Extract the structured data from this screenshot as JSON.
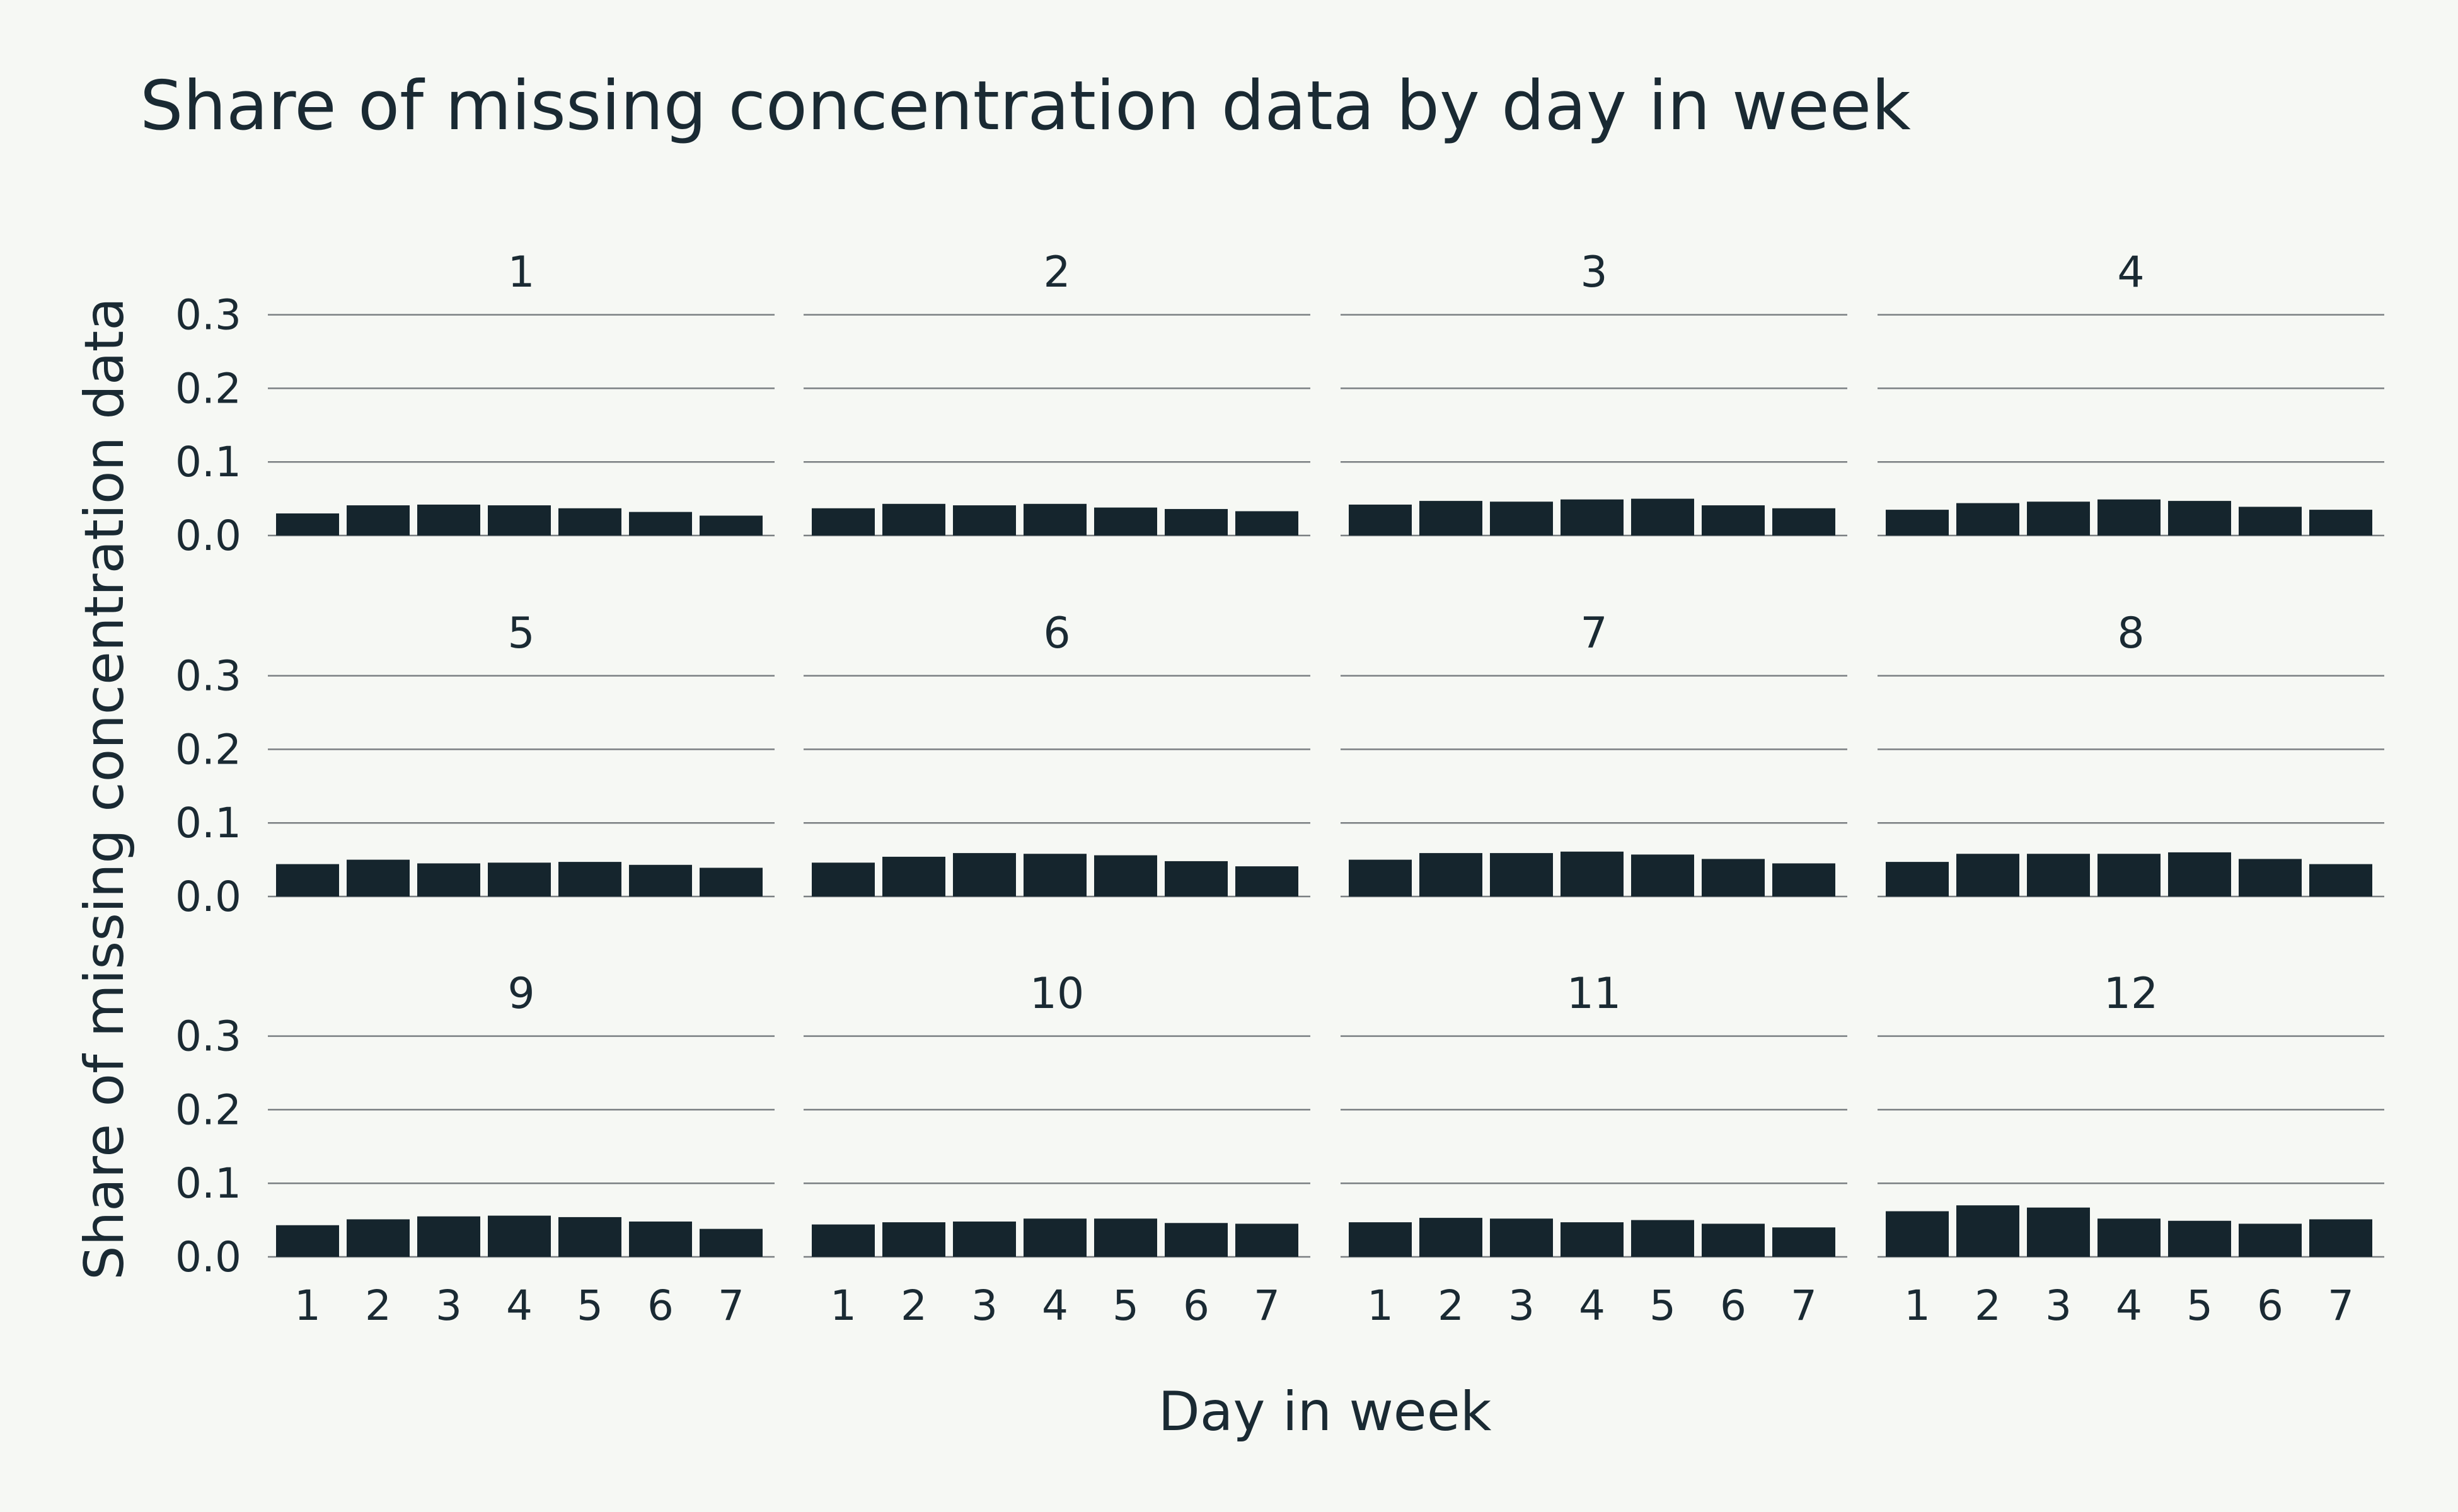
{
  "chart_data": {
    "type": "bar",
    "title": "Share of missing concentration data by day in week",
    "xlabel": "Day in week",
    "ylabel": "Share of missing concentration data",
    "categories": [
      "1",
      "2",
      "3",
      "4",
      "5",
      "6",
      "7"
    ],
    "yticks": [
      "0.0",
      "0.1",
      "0.2",
      "0.3"
    ],
    "ylim": [
      0,
      0.3
    ],
    "grid": true,
    "facet_layout": {
      "columns": 4,
      "rows": 3
    },
    "bar_color": "#15252d",
    "facets": [
      {
        "label": "1",
        "values": [
          0.03,
          0.041,
          0.042,
          0.041,
          0.037,
          0.032,
          0.027
        ]
      },
      {
        "label": "2",
        "values": [
          0.037,
          0.043,
          0.041,
          0.043,
          0.038,
          0.036,
          0.033
        ]
      },
      {
        "label": "3",
        "values": [
          0.042,
          0.047,
          0.046,
          0.049,
          0.05,
          0.041,
          0.037
        ]
      },
      {
        "label": "4",
        "values": [
          0.035,
          0.044,
          0.046,
          0.049,
          0.047,
          0.039,
          0.035
        ]
      },
      {
        "label": "5",
        "values": [
          0.044,
          0.05,
          0.045,
          0.046,
          0.047,
          0.043,
          0.039
        ]
      },
      {
        "label": "6",
        "values": [
          0.046,
          0.054,
          0.059,
          0.058,
          0.056,
          0.048,
          0.041
        ]
      },
      {
        "label": "7",
        "values": [
          0.05,
          0.059,
          0.059,
          0.061,
          0.057,
          0.051,
          0.045
        ]
      },
      {
        "label": "8",
        "values": [
          0.047,
          0.058,
          0.058,
          0.058,
          0.06,
          0.051,
          0.044
        ]
      },
      {
        "label": "9",
        "values": [
          0.043,
          0.051,
          0.055,
          0.056,
          0.054,
          0.048,
          0.038
        ]
      },
      {
        "label": "10",
        "values": [
          0.044,
          0.047,
          0.048,
          0.052,
          0.052,
          0.046,
          0.045
        ]
      },
      {
        "label": "11",
        "values": [
          0.047,
          0.053,
          0.052,
          0.047,
          0.05,
          0.045,
          0.04
        ]
      },
      {
        "label": "12",
        "values": [
          0.062,
          0.07,
          0.067,
          0.052,
          0.049,
          0.045,
          0.051
        ]
      }
    ]
  }
}
